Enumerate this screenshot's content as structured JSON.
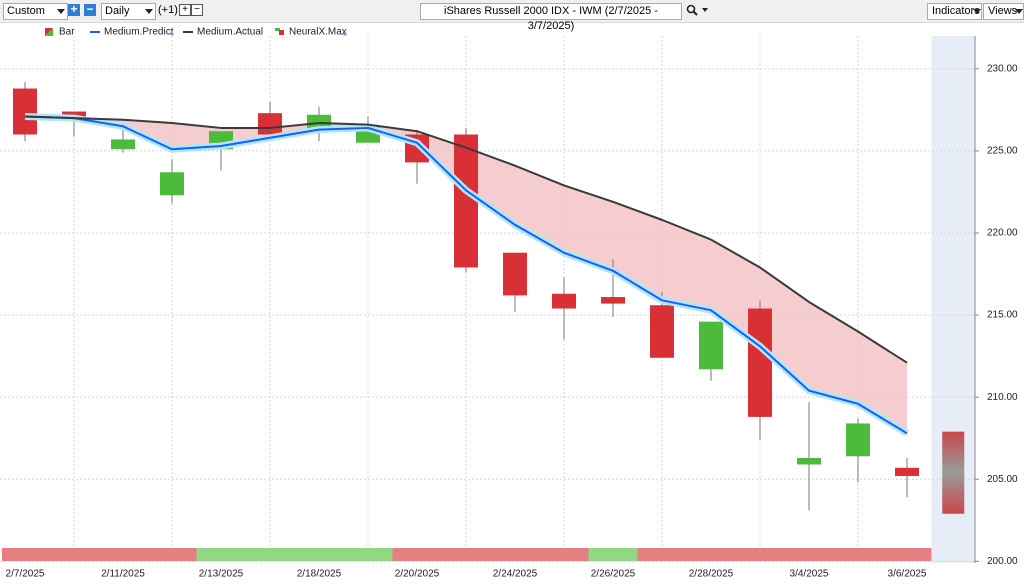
{
  "toolbar": {
    "period": "Custom",
    "interval": "Daily",
    "offset": "(+1)",
    "symbol_title": "iShares Russell 2000 IDX - IWM (2/7/2025 - 3/7/2025)",
    "indicators": "Indicators",
    "views": "Views"
  },
  "chart_data": {
    "type": "candlestick",
    "categories": [
      "2/7/2025",
      null,
      "2/11/2025",
      null,
      "2/13/2025",
      null,
      "2/18/2025",
      null,
      "2/20/2025",
      null,
      "2/24/2025",
      null,
      "2/26/2025",
      null,
      "2/28/2025",
      null,
      "3/4/2025",
      null,
      "3/6/2025"
    ],
    "candles": {
      "name": "Bar",
      "up_color": "#4cbb3c",
      "down_color": "#d93036",
      "open": [
        228.8,
        227.4,
        225.1,
        222.3,
        225.1,
        227.3,
        226.2,
        225.5,
        226.0,
        226.0,
        218.8,
        216.3,
        216.1,
        215.6,
        211.7,
        215.4,
        205.9,
        206.4,
        205.7
      ],
      "high": [
        229.2,
        227.4,
        226.5,
        224.5,
        226.2,
        228.0,
        227.7,
        227.1,
        226.3,
        226.4,
        218.8,
        217.3,
        218.4,
        216.4,
        214.6,
        215.9,
        209.7,
        208.7,
        206.3
      ],
      "low": [
        225.6,
        225.9,
        224.9,
        221.8,
        223.8,
        226.0,
        225.6,
        225.5,
        223.0,
        217.6,
        215.2,
        213.5,
        214.9,
        212.4,
        211.0,
        207.4,
        203.1,
        204.8,
        203.9
      ],
      "close": [
        226.0,
        227.1,
        225.7,
        223.7,
        226.2,
        226.0,
        227.2,
        226.5,
        224.3,
        217.9,
        216.2,
        215.4,
        215.7,
        212.4,
        214.6,
        208.8,
        206.3,
        208.4,
        205.2
      ]
    },
    "series": [
      {
        "name": "Medium.Predict",
        "color": "#1a5cff",
        "values": [
          227.1,
          227.0,
          226.5,
          225.1,
          225.3,
          225.8,
          226.3,
          226.4,
          225.5,
          222.6,
          220.5,
          218.8,
          217.7,
          215.9,
          215.3,
          213.1,
          210.4,
          209.6,
          207.8
        ]
      },
      {
        "name": "Medium.Actual",
        "color": "#3a3a3a",
        "values": [
          227.1,
          227.0,
          226.9,
          226.7,
          226.4,
          226.4,
          226.7,
          226.6,
          226.2,
          225.2,
          224.1,
          222.9,
          221.9,
          220.8,
          219.6,
          217.9,
          215.8,
          214.0,
          212.1
        ]
      }
    ],
    "fill_color": "#f4c4c6",
    "forecast": {
      "name": "NeuralX.Max",
      "high": 207.9,
      "low": 202.9
    },
    "signal_colors": [
      "#e57f82",
      "#e57f82",
      "#e57f82",
      "#e57f82",
      "#90d982",
      "#90d982",
      "#90d982",
      "#90d982",
      "#e57f82",
      "#e57f82",
      "#e57f82",
      "#e57f82",
      "#90d982",
      "#e57f82",
      "#e57f82",
      "#e57f82",
      "#e57f82",
      "#e57f82",
      "#e57f82"
    ],
    "ylim": [
      199.9,
      232.0
    ],
    "yticks": [
      {
        "value": 200,
        "label": "200.00"
      },
      {
        "value": 205,
        "label": "205.00"
      },
      {
        "value": 210,
        "label": "210.00"
      },
      {
        "value": 215,
        "label": "215.00"
      },
      {
        "value": 220,
        "label": "220.00"
      },
      {
        "value": 225,
        "label": "225.00"
      },
      {
        "value": 230,
        "label": "230.00"
      }
    ],
    "grid": true
  }
}
